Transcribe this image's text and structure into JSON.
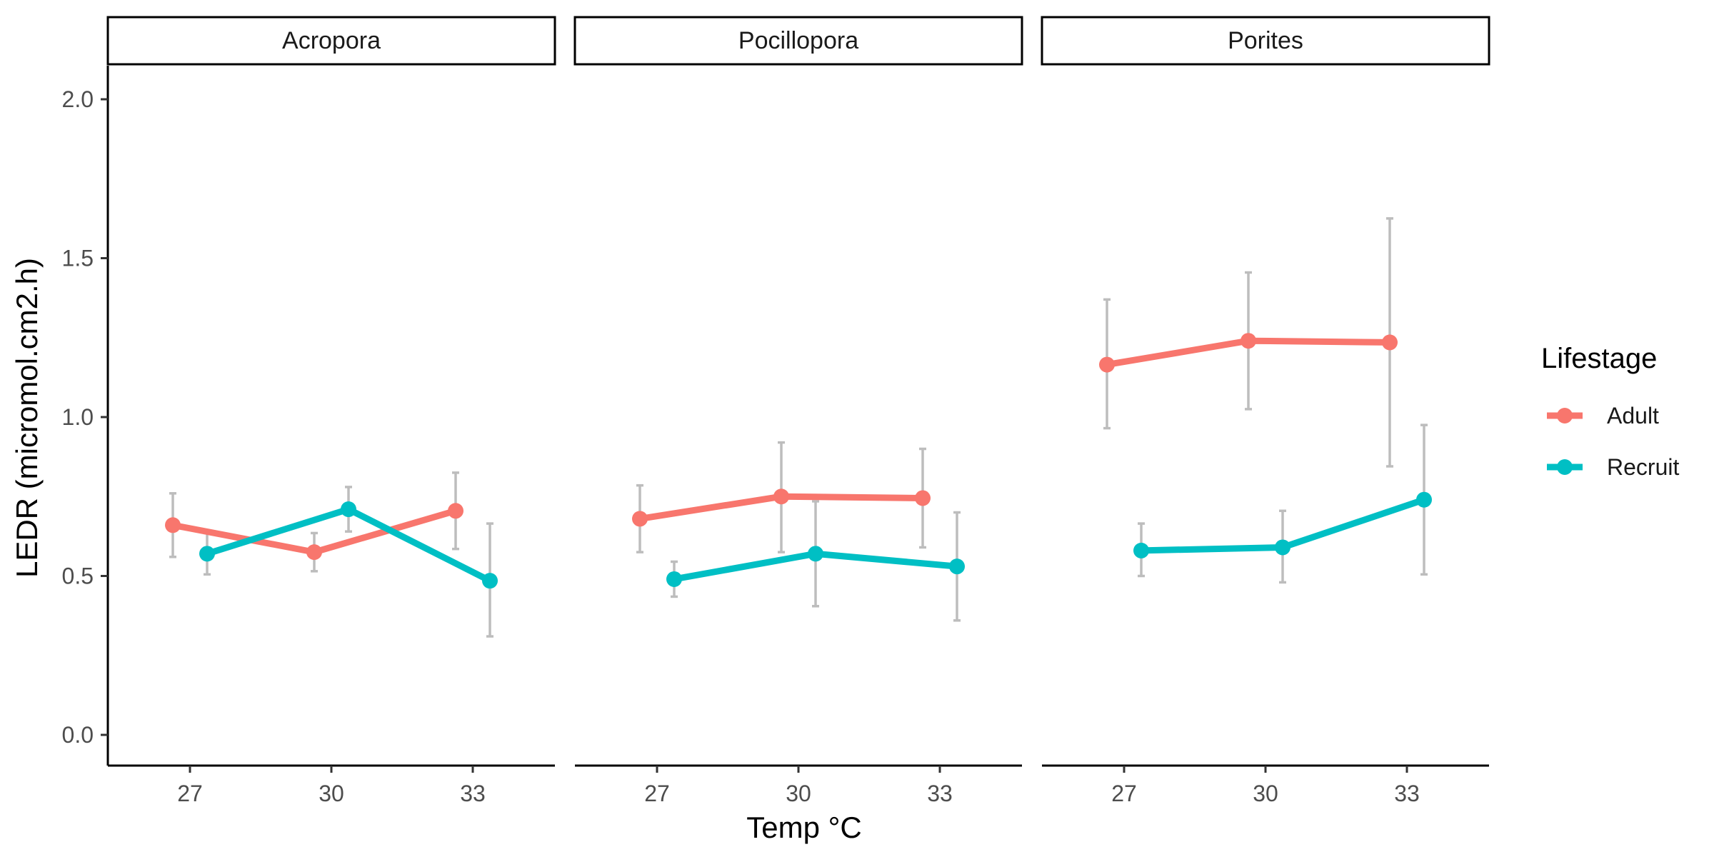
{
  "chart_data": {
    "type": "line",
    "facets": [
      "Acropora",
      "Pocillopora",
      "Porites"
    ],
    "xlabel": "Temp °C",
    "ylabel": "LEDR (micromol.cm2.h)",
    "x_ticks": [
      27,
      30,
      33
    ],
    "y_ticks": [
      0.0,
      0.5,
      1.0,
      1.5,
      2.0
    ],
    "y_tick_labels": [
      "0.0",
      "0.5",
      "1.0",
      "1.5",
      "2.0"
    ],
    "ylim": [
      0.0,
      2.0
    ],
    "legend": {
      "title": "Lifestage",
      "placement": "right",
      "entries": [
        "Adult",
        "Recruit"
      ]
    },
    "colors": {
      "Adult": "#F8766D",
      "Recruit": "#00BFC4",
      "error_bar": "#BDBDBD"
    },
    "series": [
      {
        "facet": "Acropora",
        "name": "Adult",
        "x": [
          27,
          30,
          33
        ],
        "y": [
          0.66,
          0.575,
          0.705
        ],
        "ymin": [
          0.56,
          0.515,
          0.585
        ],
        "ymax": [
          0.76,
          0.635,
          0.825
        ]
      },
      {
        "facet": "Acropora",
        "name": "Recruit",
        "x": [
          27,
          30,
          33
        ],
        "y": [
          0.57,
          0.71,
          0.485
        ],
        "ymin": [
          0.505,
          0.64,
          0.31
        ],
        "ymax": [
          0.635,
          0.78,
          0.665
        ]
      },
      {
        "facet": "Pocillopora",
        "name": "Adult",
        "x": [
          27,
          30,
          33
        ],
        "y": [
          0.68,
          0.75,
          0.745
        ],
        "ymin": [
          0.575,
          0.575,
          0.59
        ],
        "ymax": [
          0.785,
          0.92,
          0.9
        ]
      },
      {
        "facet": "Pocillopora",
        "name": "Recruit",
        "x": [
          27,
          30,
          33
        ],
        "y": [
          0.49,
          0.57,
          0.53
        ],
        "ymin": [
          0.435,
          0.405,
          0.36
        ],
        "ymax": [
          0.545,
          0.735,
          0.7
        ]
      },
      {
        "facet": "Porites",
        "name": "Adult",
        "x": [
          27,
          30,
          33
        ],
        "y": [
          1.165,
          1.24,
          1.235
        ],
        "ymin": [
          0.965,
          1.025,
          0.845
        ],
        "ymax": [
          1.37,
          1.455,
          1.625
        ]
      },
      {
        "facet": "Porites",
        "name": "Recruit",
        "x": [
          27,
          30,
          33
        ],
        "y": [
          0.58,
          0.59,
          0.74
        ],
        "ymin": [
          0.5,
          0.48,
          0.505
        ],
        "ymax": [
          0.665,
          0.705,
          0.975
        ]
      }
    ]
  }
}
